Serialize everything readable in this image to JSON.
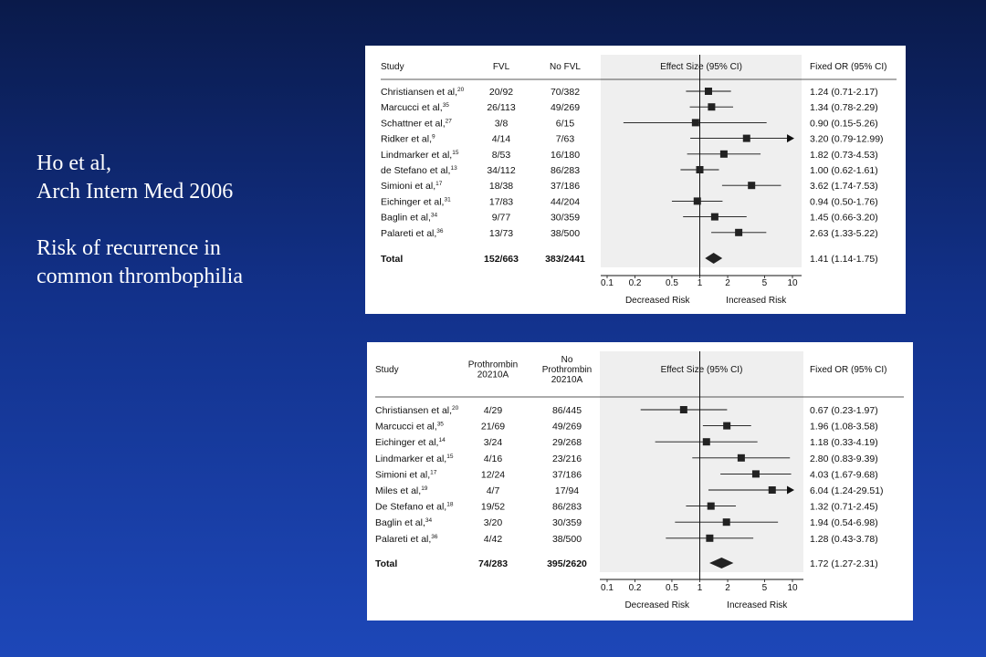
{
  "caption": {
    "line1": "Ho et al,",
    "line2": "Arch Intern Med 2006",
    "line3": "Risk of recurrence in",
    "line4": "common thrombophilia"
  },
  "chart_data": [
    {
      "type": "forest",
      "scale": "log",
      "xlim": [
        0.1,
        10
      ],
      "headers": {
        "study": "Study",
        "group1": [
          "FVL"
        ],
        "group2": [
          "No FVL"
        ],
        "effect": "Effect Size (95% CI)",
        "or": "Fixed OR (95% CI)"
      },
      "ticks": [
        "0.1",
        "0.2",
        "0.5",
        "1",
        "2",
        "5",
        "10"
      ],
      "tick_values": [
        0.1,
        0.2,
        0.5,
        1,
        2,
        5,
        10
      ],
      "xlabel_left": "Decreased Risk",
      "xlabel_right": "Increased Risk",
      "studies": [
        {
          "name": "Christiansen et al,",
          "ref": "20",
          "g1": "20/92",
          "g2": "70/382",
          "or": 1.24,
          "lo": 0.71,
          "hi": 2.17,
          "or_text": "1.24 (0.71-2.17)"
        },
        {
          "name": "Marcucci et al,",
          "ref": "35",
          "g1": "26/113",
          "g2": "49/269",
          "or": 1.34,
          "lo": 0.78,
          "hi": 2.29,
          "or_text": "1.34 (0.78-2.29)"
        },
        {
          "name": "Schattner et al,",
          "ref": "27",
          "g1": "3/8",
          "g2": "6/15",
          "or": 0.9,
          "lo": 0.15,
          "hi": 5.26,
          "or_text": "0.90 (0.15-5.26)"
        },
        {
          "name": "Ridker et al,",
          "ref": "9",
          "g1": "4/14",
          "g2": "7/63",
          "or": 3.2,
          "lo": 0.79,
          "hi": 12.99,
          "or_text": "3.20 (0.79-12.99)"
        },
        {
          "name": "Lindmarker et al,",
          "ref": "15",
          "g1": "8/53",
          "g2": "16/180",
          "or": 1.82,
          "lo": 0.73,
          "hi": 4.53,
          "or_text": "1.82 (0.73-4.53)"
        },
        {
          "name": "de Stefano et al,",
          "ref": "13",
          "g1": "34/112",
          "g2": "86/283",
          "or": 1.0,
          "lo": 0.62,
          "hi": 1.61,
          "or_text": "1.00 (0.62-1.61)"
        },
        {
          "name": "Simioni et al,",
          "ref": "17",
          "g1": "18/38",
          "g2": "37/186",
          "or": 3.62,
          "lo": 1.74,
          "hi": 7.53,
          "or_text": "3.62 (1.74-7.53)"
        },
        {
          "name": "Eichinger et al,",
          "ref": "31",
          "g1": "17/83",
          "g2": "44/204",
          "or": 0.94,
          "lo": 0.5,
          "hi": 1.76,
          "or_text": "0.94 (0.50-1.76)"
        },
        {
          "name": "Baglin et al,",
          "ref": "34",
          "g1": "9/77",
          "g2": "30/359",
          "or": 1.45,
          "lo": 0.66,
          "hi": 3.2,
          "or_text": "1.45 (0.66-3.20)"
        },
        {
          "name": "Palareti et al,",
          "ref": "36",
          "g1": "13/73",
          "g2": "38/500",
          "or": 2.63,
          "lo": 1.33,
          "hi": 5.22,
          "or_text": "2.63 (1.33-5.22)"
        }
      ],
      "total": {
        "name": "Total",
        "g1": "152/663",
        "g2": "383/2441",
        "or": 1.41,
        "lo": 1.14,
        "hi": 1.75,
        "or_text": "1.41 (1.14-1.75)"
      }
    },
    {
      "type": "forest",
      "scale": "log",
      "xlim": [
        0.1,
        10
      ],
      "headers": {
        "study": "Study",
        "group1": [
          "Prothrombin",
          "20210A"
        ],
        "group2": [
          "No",
          "Prothrombin",
          "20210A"
        ],
        "effect": "Effect Size (95% CI)",
        "or": "Fixed OR (95% CI)"
      },
      "ticks": [
        "0.1",
        "0.2",
        "0.5",
        "1",
        "2",
        "5",
        "10"
      ],
      "tick_values": [
        0.1,
        0.2,
        0.5,
        1,
        2,
        5,
        10
      ],
      "xlabel_left": "Decreased Risk",
      "xlabel_right": "Increased Risk",
      "studies": [
        {
          "name": "Christiansen et al,",
          "ref": "20",
          "g1": "4/29",
          "g2": "86/445",
          "or": 0.67,
          "lo": 0.23,
          "hi": 1.97,
          "or_text": "0.67 (0.23-1.97)"
        },
        {
          "name": "Marcucci et al,",
          "ref": "35",
          "g1": "21/69",
          "g2": "49/269",
          "or": 1.96,
          "lo": 1.08,
          "hi": 3.58,
          "or_text": "1.96 (1.08-3.58)"
        },
        {
          "name": "Eichinger et al,",
          "ref": "14",
          "g1": "3/24",
          "g2": "29/268",
          "or": 1.18,
          "lo": 0.33,
          "hi": 4.19,
          "or_text": "1.18 (0.33-4.19)"
        },
        {
          "name": "Lindmarker et al,",
          "ref": "15",
          "g1": "4/16",
          "g2": "23/216",
          "or": 2.8,
          "lo": 0.83,
          "hi": 9.39,
          "or_text": "2.80 (0.83-9.39)"
        },
        {
          "name": "Simioni et al,",
          "ref": "17",
          "g1": "12/24",
          "g2": "37/186",
          "or": 4.03,
          "lo": 1.67,
          "hi": 9.68,
          "or_text": "4.03 (1.67-9.68)"
        },
        {
          "name": "Miles et al,",
          "ref": "19",
          "g1": "4/7",
          "g2": "17/94",
          "or": 6.04,
          "lo": 1.24,
          "hi": 29.51,
          "or_text": "6.04 (1.24-29.51)"
        },
        {
          "name": "De Stefano et al,",
          "ref": "18",
          "g1": "19/52",
          "g2": "86/283",
          "or": 1.32,
          "lo": 0.71,
          "hi": 2.45,
          "or_text": "1.32 (0.71-2.45)"
        },
        {
          "name": "Baglin et al,",
          "ref": "34",
          "g1": "3/20",
          "g2": "30/359",
          "or": 1.94,
          "lo": 0.54,
          "hi": 6.98,
          "or_text": "1.94 (0.54-6.98)"
        },
        {
          "name": "Palareti et al,",
          "ref": "36",
          "g1": "4/42",
          "g2": "38/500",
          "or": 1.28,
          "lo": 0.43,
          "hi": 3.78,
          "or_text": "1.28 (0.43-3.78)"
        }
      ],
      "total": {
        "name": "Total",
        "g1": "74/283",
        "g2": "395/2620",
        "or": 1.72,
        "lo": 1.27,
        "hi": 2.31,
        "or_text": "1.72 (1.27-2.31)"
      }
    }
  ]
}
